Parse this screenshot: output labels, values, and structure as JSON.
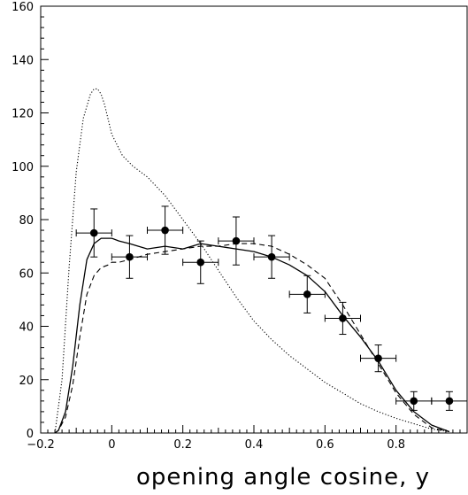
{
  "chart_data": {
    "type": "scatter",
    "title": "",
    "xlabel": "opening angle cosine, y",
    "ylabel": "",
    "xlim": [
      -0.2,
      1.0
    ],
    "ylim": [
      0,
      160
    ],
    "grid": false,
    "x_ticks": [
      -0.2,
      0,
      0.2,
      0.4,
      0.6,
      0.8
    ],
    "x_tick_labels": [
      "−0.2",
      "0",
      "0.2",
      "0.4",
      "0.6",
      "0.8"
    ],
    "y_ticks": [
      0,
      20,
      40,
      60,
      80,
      100,
      120,
      140,
      160
    ],
    "y_tick_labels": [
      "0",
      "20",
      "40",
      "60",
      "80",
      "100",
      "120",
      "140",
      "160"
    ],
    "series": [
      {
        "style": "points-with-errorbars",
        "color": "#000000",
        "x": [
          -0.05,
          0.05,
          0.15,
          0.25,
          0.35,
          0.45,
          0.55,
          0.65,
          0.75,
          0.85,
          0.95
        ],
        "y": [
          75,
          66,
          76,
          64,
          72,
          66,
          52,
          43,
          28,
          12,
          12
        ],
        "x_err": [
          0.05,
          0.05,
          0.05,
          0.05,
          0.05,
          0.05,
          0.05,
          0.05,
          0.05,
          0.05,
          0.05
        ],
        "y_err": [
          9,
          8,
          9,
          8,
          9,
          8,
          7,
          6,
          5,
          3.5,
          3.5
        ]
      },
      {
        "style": "solid",
        "color": "#000000",
        "x": [
          -0.16,
          -0.15,
          -0.13,
          -0.11,
          -0.09,
          -0.07,
          -0.05,
          -0.03,
          -0.01,
          0.0,
          0.02,
          0.05,
          0.1,
          0.15,
          0.2,
          0.25,
          0.3,
          0.35,
          0.4,
          0.45,
          0.5,
          0.55,
          0.6,
          0.65,
          0.7,
          0.75,
          0.8,
          0.85,
          0.9,
          0.95
        ],
        "y": [
          0,
          1,
          8,
          25,
          48,
          65,
          71,
          73,
          73,
          73,
          72,
          71,
          69,
          70,
          69,
          71,
          70,
          69,
          68,
          66,
          63,
          59,
          53,
          44,
          36,
          27,
          16,
          8,
          3,
          0.5
        ]
      },
      {
        "style": "dashed",
        "color": "#000000",
        "x": [
          -0.16,
          -0.15,
          -0.13,
          -0.11,
          -0.09,
          -0.07,
          -0.05,
          -0.03,
          -0.01,
          0.0,
          0.02,
          0.05,
          0.1,
          0.15,
          0.2,
          0.25,
          0.3,
          0.35,
          0.4,
          0.45,
          0.5,
          0.55,
          0.6,
          0.65,
          0.7,
          0.75,
          0.8,
          0.85,
          0.9,
          0.95
        ],
        "y": [
          0,
          1,
          6,
          18,
          36,
          52,
          59,
          62,
          63,
          64,
          64,
          65,
          67,
          68,
          69,
          70,
          70,
          71,
          71,
          70,
          67,
          63,
          58,
          48,
          37,
          26,
          15,
          7,
          2,
          0.5
        ]
      },
      {
        "style": "dotted",
        "color": "#000000",
        "x": [
          -0.16,
          -0.14,
          -0.12,
          -0.1,
          -0.08,
          -0.06,
          -0.05,
          -0.04,
          -0.03,
          -0.02,
          0.0,
          0.03,
          0.06,
          0.1,
          0.15,
          0.2,
          0.25,
          0.3,
          0.35,
          0.4,
          0.45,
          0.5,
          0.55,
          0.6,
          0.65,
          0.7,
          0.75,
          0.8,
          0.85,
          0.9,
          0.95
        ],
        "y": [
          0,
          20,
          62,
          98,
          118,
          127,
          129,
          129,
          127,
          123,
          112,
          104,
          100,
          96,
          89,
          80,
          71,
          61,
          51,
          42,
          35,
          29,
          24,
          19,
          15,
          11,
          8,
          5.5,
          3.5,
          1.5,
          0.5
        ]
      }
    ]
  }
}
